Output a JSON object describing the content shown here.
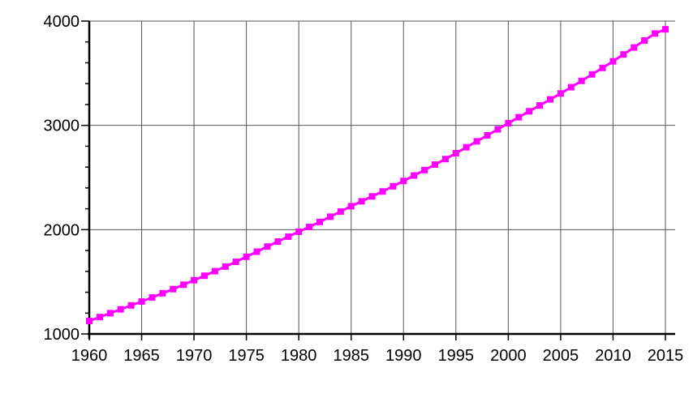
{
  "chart_data": {
    "type": "line",
    "title": "",
    "xlabel": "",
    "ylabel": "",
    "xlim": [
      1960,
      2015
    ],
    "ylim": [
      1000,
      4000
    ],
    "grid": true,
    "x_ticks": [
      1960,
      1965,
      1970,
      1975,
      1980,
      1985,
      1990,
      1995,
      2000,
      2005,
      2010,
      2015
    ],
    "y_ticks": [
      1000,
      2000,
      3000,
      4000
    ],
    "x_tick_labels": [
      "1960",
      "1965",
      "1970",
      "1975",
      "1980",
      "1985",
      "1990",
      "1995",
      "2000",
      "2005",
      "2010",
      "2015"
    ],
    "y_tick_labels": [
      "1000",
      "2000",
      "3000",
      "4000"
    ],
    "colors": {
      "line": "#ff00ff",
      "marker": "#ff00ff",
      "grid": "#555555",
      "axis": "#000000"
    },
    "series": [
      {
        "x": [
          1960,
          1961,
          1962,
          1963,
          1964,
          1965,
          1966,
          1967,
          1968,
          1969,
          1970,
          1971,
          1972,
          1973,
          1974,
          1975,
          1976,
          1977,
          1978,
          1979,
          1980,
          1981,
          1982,
          1983,
          1984,
          1985,
          1986,
          1987,
          1988,
          1989,
          1990,
          1991,
          1992,
          1993,
          1994,
          1995,
          1996,
          1997,
          1998,
          1999,
          2000,
          2001,
          2002,
          2003,
          2004,
          2005,
          2006,
          2007,
          2008,
          2009,
          2010,
          2011,
          2012,
          2013,
          2014,
          2015
        ],
        "values": [
          1124,
          1162,
          1199,
          1236,
          1274,
          1311,
          1350,
          1390,
          1430,
          1472,
          1515,
          1558,
          1602,
          1646,
          1692,
          1740,
          1789,
          1838,
          1886,
          1933,
          1980,
          2026,
          2074,
          2124,
          2174,
          2225,
          2272,
          2319,
          2366,
          2416,
          2467,
          2519,
          2571,
          2624,
          2677,
          2733,
          2790,
          2847,
          2904,
          2962,
          3021,
          3078,
          3135,
          3191,
          3249,
          3306,
          3366,
          3427,
          3489,
          3551,
          3614,
          3680,
          3747,
          3814,
          3881,
          3921
        ]
      }
    ]
  }
}
